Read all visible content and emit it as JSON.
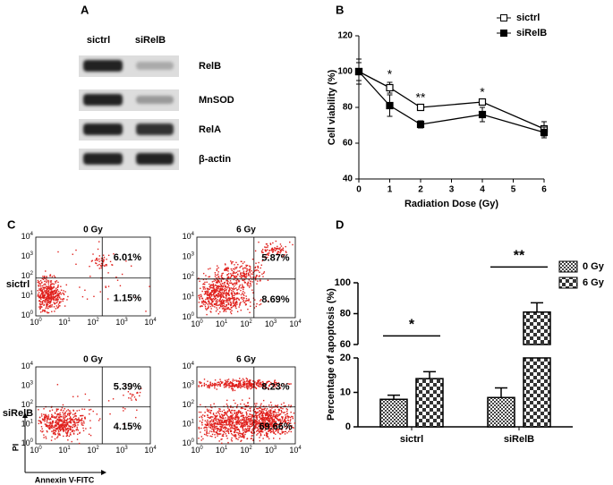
{
  "panel_labels": [
    "A",
    "B",
    "C",
    "D"
  ],
  "blot": {
    "columns": [
      "sictrl",
      "siRelB"
    ],
    "rows": [
      "RelB",
      "MnSOD",
      "RelA",
      "β-actin"
    ]
  },
  "flow": {
    "row_labels": [
      "sictrl",
      "siRelB"
    ],
    "xlabel": "Annexin V-FITC",
    "ylabel": "PI",
    "ticks": [
      {
        "base": "10",
        "exp": "0"
      },
      {
        "base": "10",
        "exp": "1"
      },
      {
        "base": "10",
        "exp": "2"
      },
      {
        "base": "10",
        "exp": "3"
      },
      {
        "base": "10",
        "exp": "4"
      }
    ],
    "plots": [
      {
        "title": "0 Gy",
        "upper": "6.01%",
        "lower": "1.15%"
      },
      {
        "title": "6 Gy",
        "upper": "5.87%",
        "lower": "8.69%"
      },
      {
        "title": "0 Gy",
        "upper": "5.39%",
        "lower": "4.15%"
      },
      {
        "title": "6 Gy",
        "upper": "8.23%",
        "lower": "69.66%"
      }
    ]
  },
  "chart_data": [
    {
      "type": "line",
      "xlabel": "Radiation Dose (Gy)",
      "ylabel": "Cell viability (%)",
      "x": [
        0,
        1,
        2,
        4,
        6
      ],
      "xlim": [
        0,
        6
      ],
      "xticks": [
        0,
        1,
        2,
        3,
        4,
        5,
        6
      ],
      "ylim": [
        40,
        120
      ],
      "yticks": [
        40,
        60,
        80,
        100,
        120
      ],
      "legend": "upper right",
      "annotations": [
        null,
        "*",
        "**",
        "*",
        null
      ],
      "series": [
        {
          "name": "sictrl",
          "color": "#000000",
          "filled": false,
          "values": [
            100,
            91,
            80,
            83,
            68
          ],
          "errors": [
            5,
            3,
            1,
            1,
            4
          ]
        },
        {
          "name": "siRelB",
          "color": "#000000",
          "filled": true,
          "values": [
            100,
            81,
            70.5,
            76,
            66
          ],
          "errors": [
            7,
            6,
            2,
            4,
            3
          ]
        }
      ]
    },
    {
      "type": "bar",
      "ylabel": "Percentage of apoptosis (%)",
      "categories": [
        "sictrl",
        "siRelB"
      ],
      "ylim_lower": [
        0,
        20
      ],
      "ylim_upper": [
        60,
        100
      ],
      "yticks_lower": [
        0,
        10,
        20
      ],
      "yticks_upper": [
        60,
        80,
        100
      ],
      "legend": "upper right",
      "significance": [
        "*",
        "**"
      ],
      "series": [
        {
          "name": "0 Gy",
          "color": "#555555",
          "values": [
            8,
            8.5
          ],
          "errors": [
            1.2,
            2.8
          ]
        },
        {
          "name": "6 Gy",
          "color": "#555555",
          "values": [
            14,
            81
          ],
          "errors": [
            2,
            6
          ]
        }
      ]
    }
  ]
}
